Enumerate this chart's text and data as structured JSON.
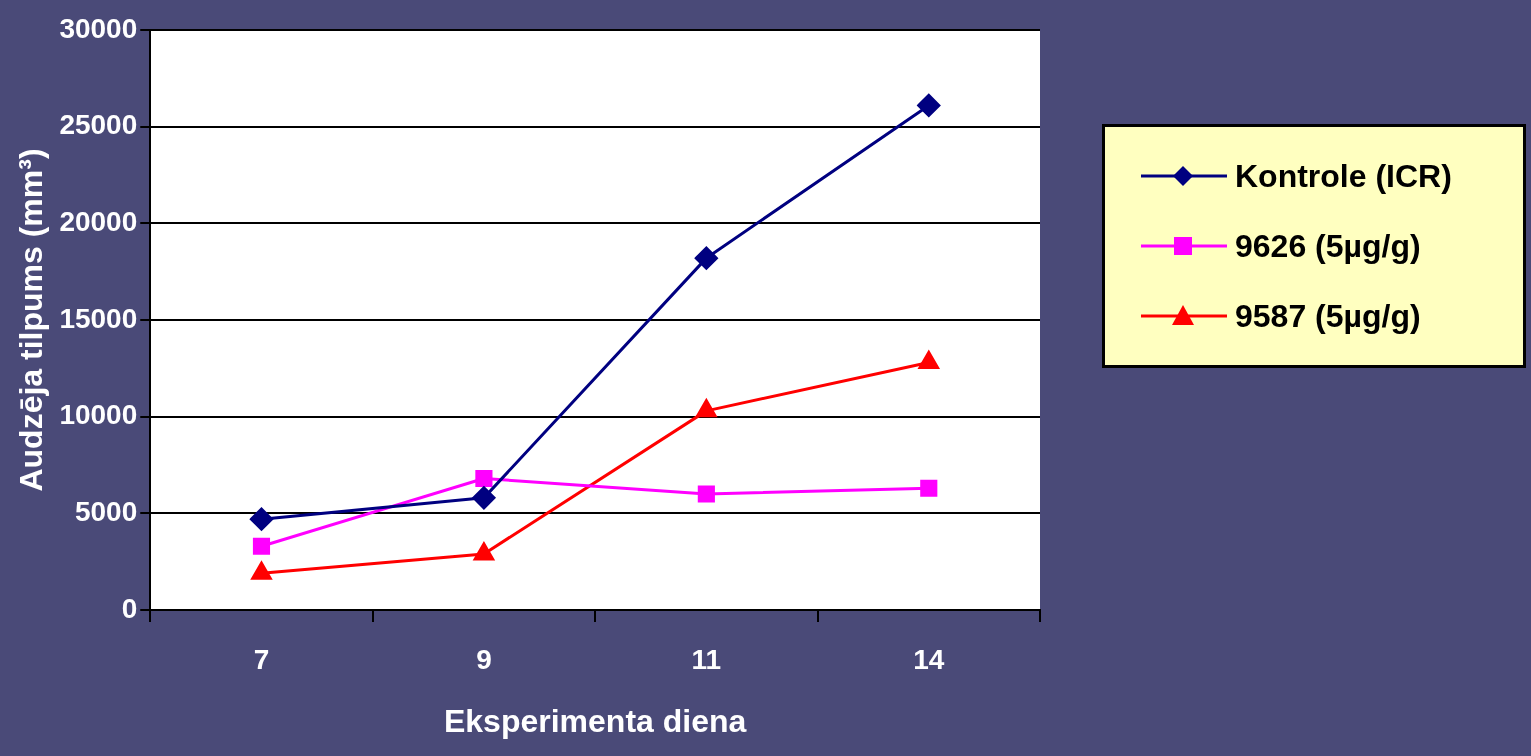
{
  "chart_data": {
    "type": "line",
    "xlabel": "Eksperimenta diena",
    "ylabel": "Audzēja tilpums (mm³)",
    "categories": [
      "7",
      "9",
      "11",
      "14"
    ],
    "series": [
      {
        "name": "Kontrole (ICR)",
        "color": "#000080",
        "marker": "diamond",
        "values": [
          4700,
          5800,
          18200,
          26100
        ]
      },
      {
        "name": "9626 (5µg/g)",
        "color": "#ff00ff",
        "marker": "square",
        "values": [
          3300,
          6800,
          6000,
          6300
        ]
      },
      {
        "name": "9587 (5µg/g)",
        "color": "#ff0000",
        "marker": "triangle",
        "values": [
          1900,
          2900,
          10300,
          12800
        ]
      }
    ],
    "ylim": [
      0,
      30000
    ],
    "yticks": [
      0,
      5000,
      10000,
      15000,
      20000,
      25000,
      30000
    ],
    "grid": "y",
    "legend": "right",
    "line_style": "solid"
  }
}
